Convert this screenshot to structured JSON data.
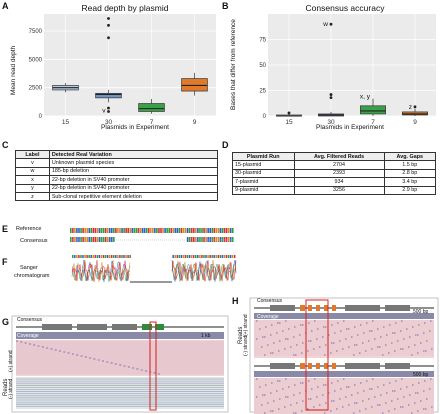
{
  "panels": {
    "A": {
      "letter": "A"
    },
    "B": {
      "letter": "B"
    },
    "C": {
      "letter": "C"
    },
    "D": {
      "letter": "D"
    },
    "E": {
      "letter": "E",
      "reference_label": "Reference",
      "consensus_label": "Consensus"
    },
    "F": {
      "letter": "F",
      "sanger_label_1": "Sanger",
      "sanger_label_2": "chromatogram"
    },
    "G": {
      "letter": "G",
      "consensus": "Consensus",
      "coverage": "Coverage",
      "scale": "1 kb",
      "reads": "Reads",
      "plus": "(+) strand",
      "minus": "(-) strand"
    },
    "H": {
      "letter": "H",
      "consensus": "Consensus",
      "coverage": "Coverage",
      "scale1": "500 bp",
      "scale2": "500 bp",
      "reads": "Reads",
      "plus": "(+) strand",
      "minus": "(-) strand"
    }
  },
  "chart_data": [
    {
      "type": "box",
      "title": "Read depth by plasmid",
      "xlabel": "Plasmids in Experiment",
      "ylabel": "Mean read depth",
      "categories": [
        "15",
        "30",
        "7",
        "9"
      ],
      "ylim": [
        0,
        9000
      ],
      "yticks": [
        "0",
        "2500",
        "5000",
        "7500"
      ],
      "ytick_values": [
        0,
        2500,
        5000,
        7500
      ],
      "boxes": [
        {
          "min": 2100,
          "q1": 2300,
          "median": 2500,
          "q3": 2700,
          "max": 2900,
          "color": "#b8cbe3"
        },
        {
          "min": 1200,
          "q1": 1600,
          "median": 1900,
          "q3": 2000,
          "max": 2300,
          "color": "#6e93c2"
        },
        {
          "min": 200,
          "q1": 400,
          "median": 650,
          "q3": 1100,
          "max": 1500,
          "color": "#3aa14a"
        },
        {
          "min": 1800,
          "q1": 2200,
          "median": 2700,
          "q3": 3300,
          "max": 3800,
          "color": "#e07a2a"
        }
      ],
      "outliers": [
        {
          "cat": 1,
          "value": 8600
        },
        {
          "cat": 1,
          "value": 8000
        },
        {
          "cat": 1,
          "value": 6900
        },
        {
          "cat": 1,
          "value": 400
        },
        {
          "cat": 1,
          "value": 700
        }
      ],
      "annotations": [
        {
          "text": "v",
          "cat": 1,
          "value": 500
        }
      ]
    },
    {
      "type": "box",
      "title": "Consensus accuracy",
      "xlabel": "Plasmids in Experiment",
      "ylabel": "Bases that differ from reference",
      "categories": [
        "15",
        "30",
        "7",
        "9"
      ],
      "ylim": [
        0,
        100
      ],
      "yticks": [
        "0",
        "25",
        "50",
        "75"
      ],
      "ytick_values": [
        0,
        25,
        50,
        75
      ],
      "boxes": [
        {
          "min": 0,
          "q1": 0,
          "median": 0,
          "q3": 1,
          "max": 2,
          "color": "#b8cbe3"
        },
        {
          "min": 0,
          "q1": 0,
          "median": 1,
          "q3": 2,
          "max": 4,
          "color": "#6e93c2"
        },
        {
          "min": 0,
          "q1": 2,
          "median": 5,
          "q3": 10,
          "max": 17,
          "color": "#3aa14a"
        },
        {
          "min": 0,
          "q1": 1,
          "median": 2,
          "q3": 4,
          "max": 7,
          "color": "#e07a2a"
        }
      ],
      "outliers": [
        {
          "cat": 0,
          "value": 3
        },
        {
          "cat": 1,
          "value": 90
        },
        {
          "cat": 1,
          "value": 21
        },
        {
          "cat": 1,
          "value": 18
        },
        {
          "cat": 3,
          "value": 9
        }
      ],
      "annotations": [
        {
          "text": "w",
          "cat": 1,
          "value": 90
        },
        {
          "text": "x, y",
          "cat": 2,
          "value": 19
        },
        {
          "text": "z",
          "cat": 3,
          "value": 9
        }
      ]
    }
  ],
  "tableC": {
    "headers": [
      "Label",
      "Detected Real Variation"
    ],
    "rows": [
      [
        "v",
        "Unknown plasmid species"
      ],
      [
        "w",
        "185-bp deletion"
      ],
      [
        "x",
        "22-bp deletion in SV40 promoter"
      ],
      [
        "y",
        "22-bp deletion in SV40 promoter"
      ],
      [
        "z",
        "Sub-clonal repetitive element deletion"
      ]
    ]
  },
  "tableD": {
    "headers": [
      "Plasmid Run",
      "Avg. Filtered Reads",
      "Avg. Gaps"
    ],
    "rows": [
      [
        "15-plasmid",
        "2704",
        "1.5 bp"
      ],
      [
        "30-plasmid",
        "2393",
        "2.8 bp"
      ],
      [
        "7-plasmid",
        "934",
        "3.4 bp"
      ],
      [
        "9-plasmid",
        "3256",
        "2.9 bp"
      ]
    ]
  }
}
